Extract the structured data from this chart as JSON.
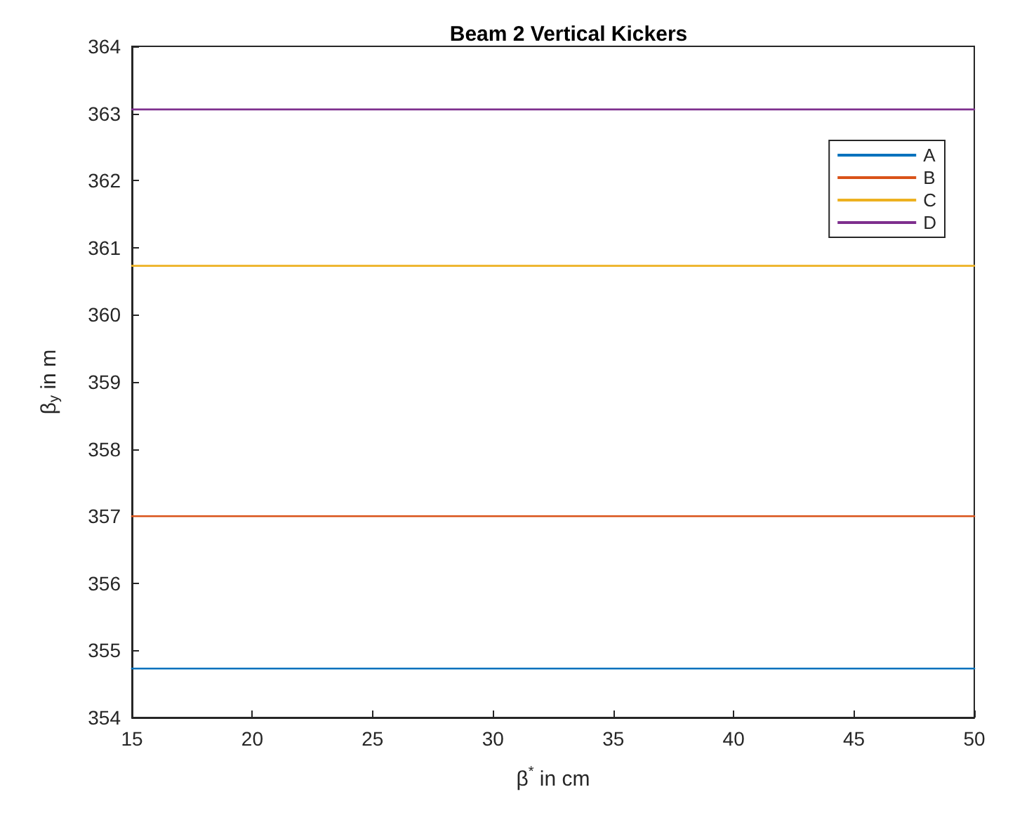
{
  "chart_data": {
    "type": "line",
    "title": "Beam 2 Vertical Kickers",
    "xlabel": "β$^{*}$ in cm",
    "ylabel": "β$_{y}$ in m",
    "xlim": [
      15,
      50
    ],
    "xticks": [
      15,
      20,
      25,
      30,
      35,
      40,
      45,
      50
    ],
    "ylim": [
      354,
      364
    ],
    "yticks": [
      354,
      355,
      356,
      357,
      358,
      359,
      360,
      361,
      362,
      363,
      364
    ],
    "x": [
      15,
      50
    ],
    "series": [
      {
        "name": "A",
        "color": "#0072bd",
        "values": [
          354.73,
          354.73
        ]
      },
      {
        "name": "B",
        "color": "#d95319",
        "values": [
          357.0,
          357.0
        ]
      },
      {
        "name": "C",
        "color": "#edb120",
        "values": [
          360.73,
          360.73
        ]
      },
      {
        "name": "D",
        "color": "#7e2f8e",
        "values": [
          363.06,
          363.06
        ]
      }
    ],
    "grid": false,
    "legend": "top right",
    "marker": "none",
    "line_style": "solid"
  }
}
